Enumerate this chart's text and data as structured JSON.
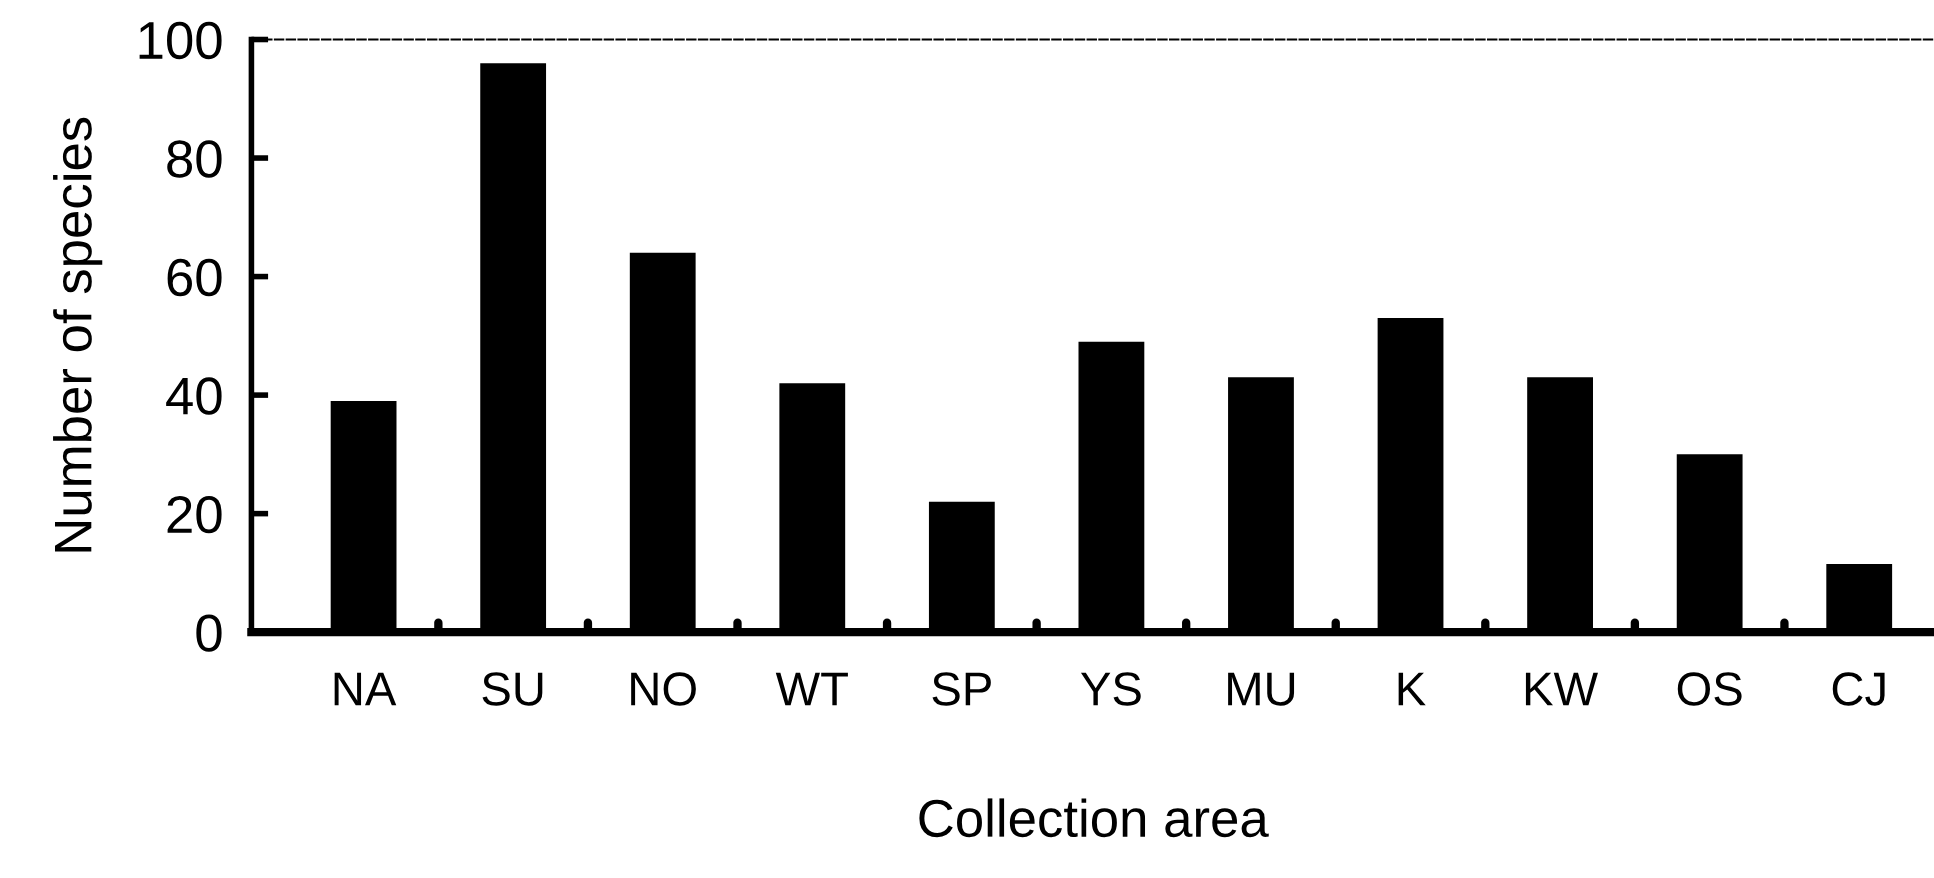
{
  "chart_data": {
    "type": "bar",
    "xlabel": "Collection area",
    "ylabel": "Number of species",
    "categories": [
      "NA",
      "SU",
      "NO",
      "WT",
      "SP",
      "YS",
      "MU",
      "K",
      "KW",
      "OS",
      "CJ"
    ],
    "values": [
      39,
      96,
      64,
      42,
      22,
      49,
      43,
      53,
      43,
      30,
      11.5
    ],
    "color": "#000000",
    "ylim": [
      0,
      100
    ],
    "yticks": [
      0,
      20,
      40,
      60,
      80,
      100
    ],
    "grid": false
  }
}
